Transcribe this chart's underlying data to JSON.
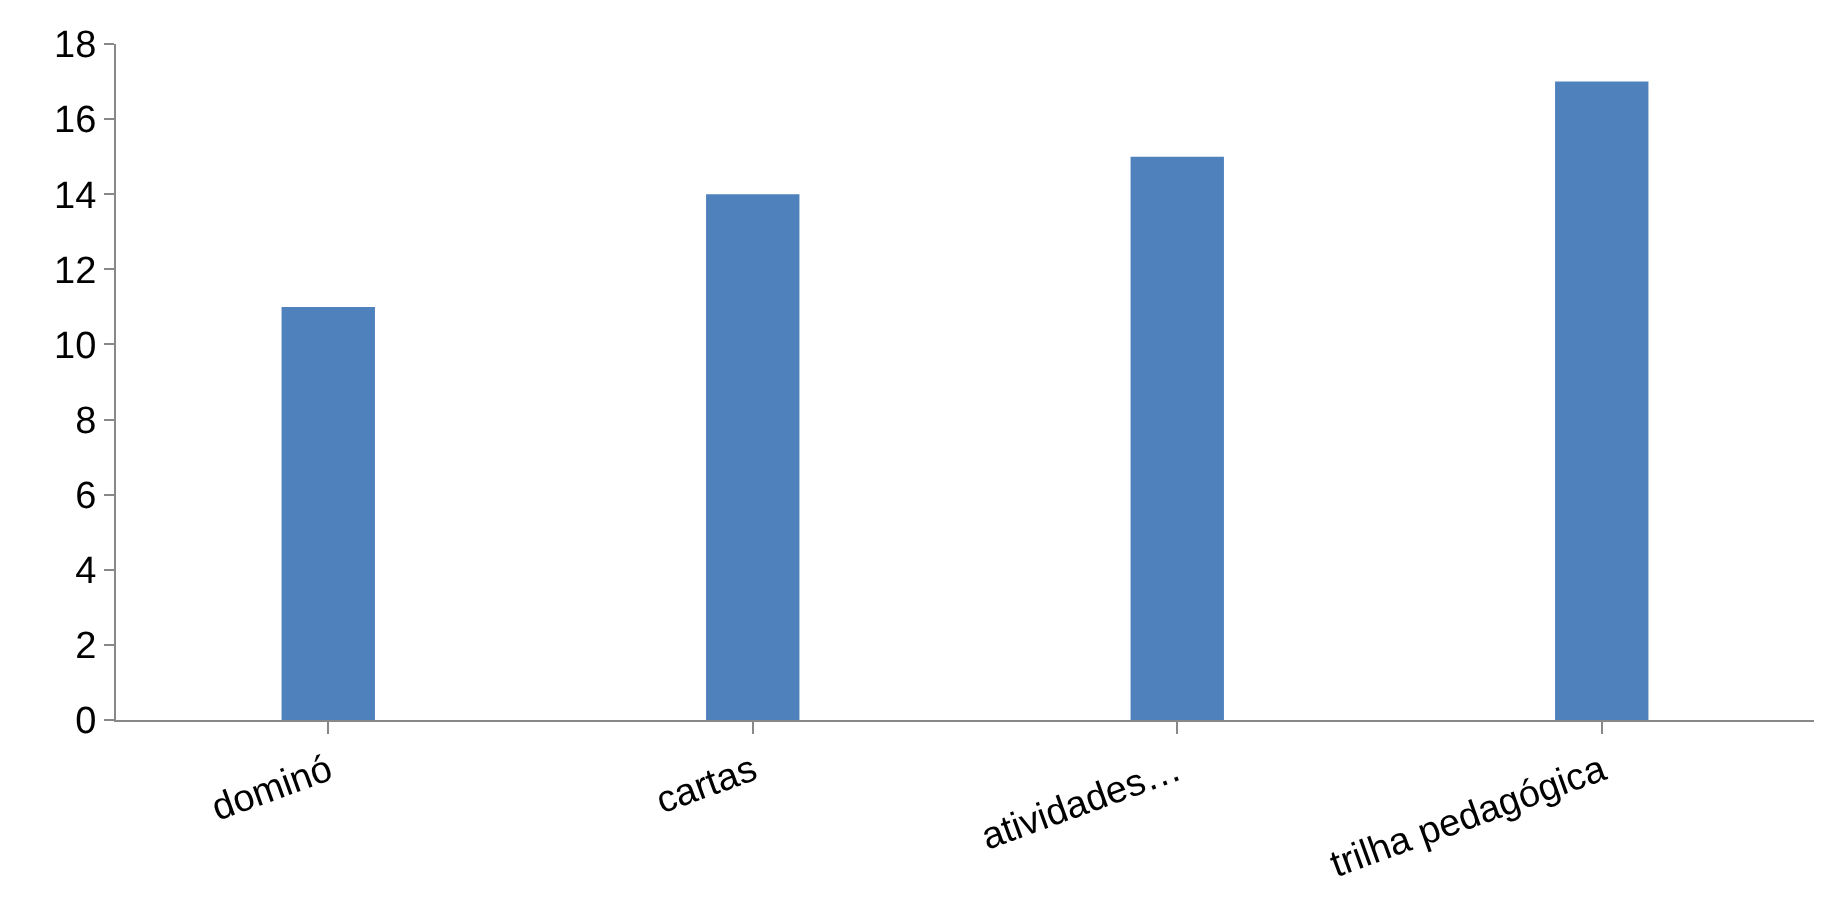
{
  "chart_data": {
    "type": "bar",
    "categories": [
      "dominó",
      "cartas",
      "atividades…",
      "trilha pedagógica"
    ],
    "values": [
      11,
      14,
      15,
      17
    ],
    "color": "#4f81bd",
    "ylim": [
      0,
      18
    ],
    "yticks": [
      0,
      2,
      4,
      6,
      8,
      10,
      12,
      14,
      16,
      18
    ]
  }
}
